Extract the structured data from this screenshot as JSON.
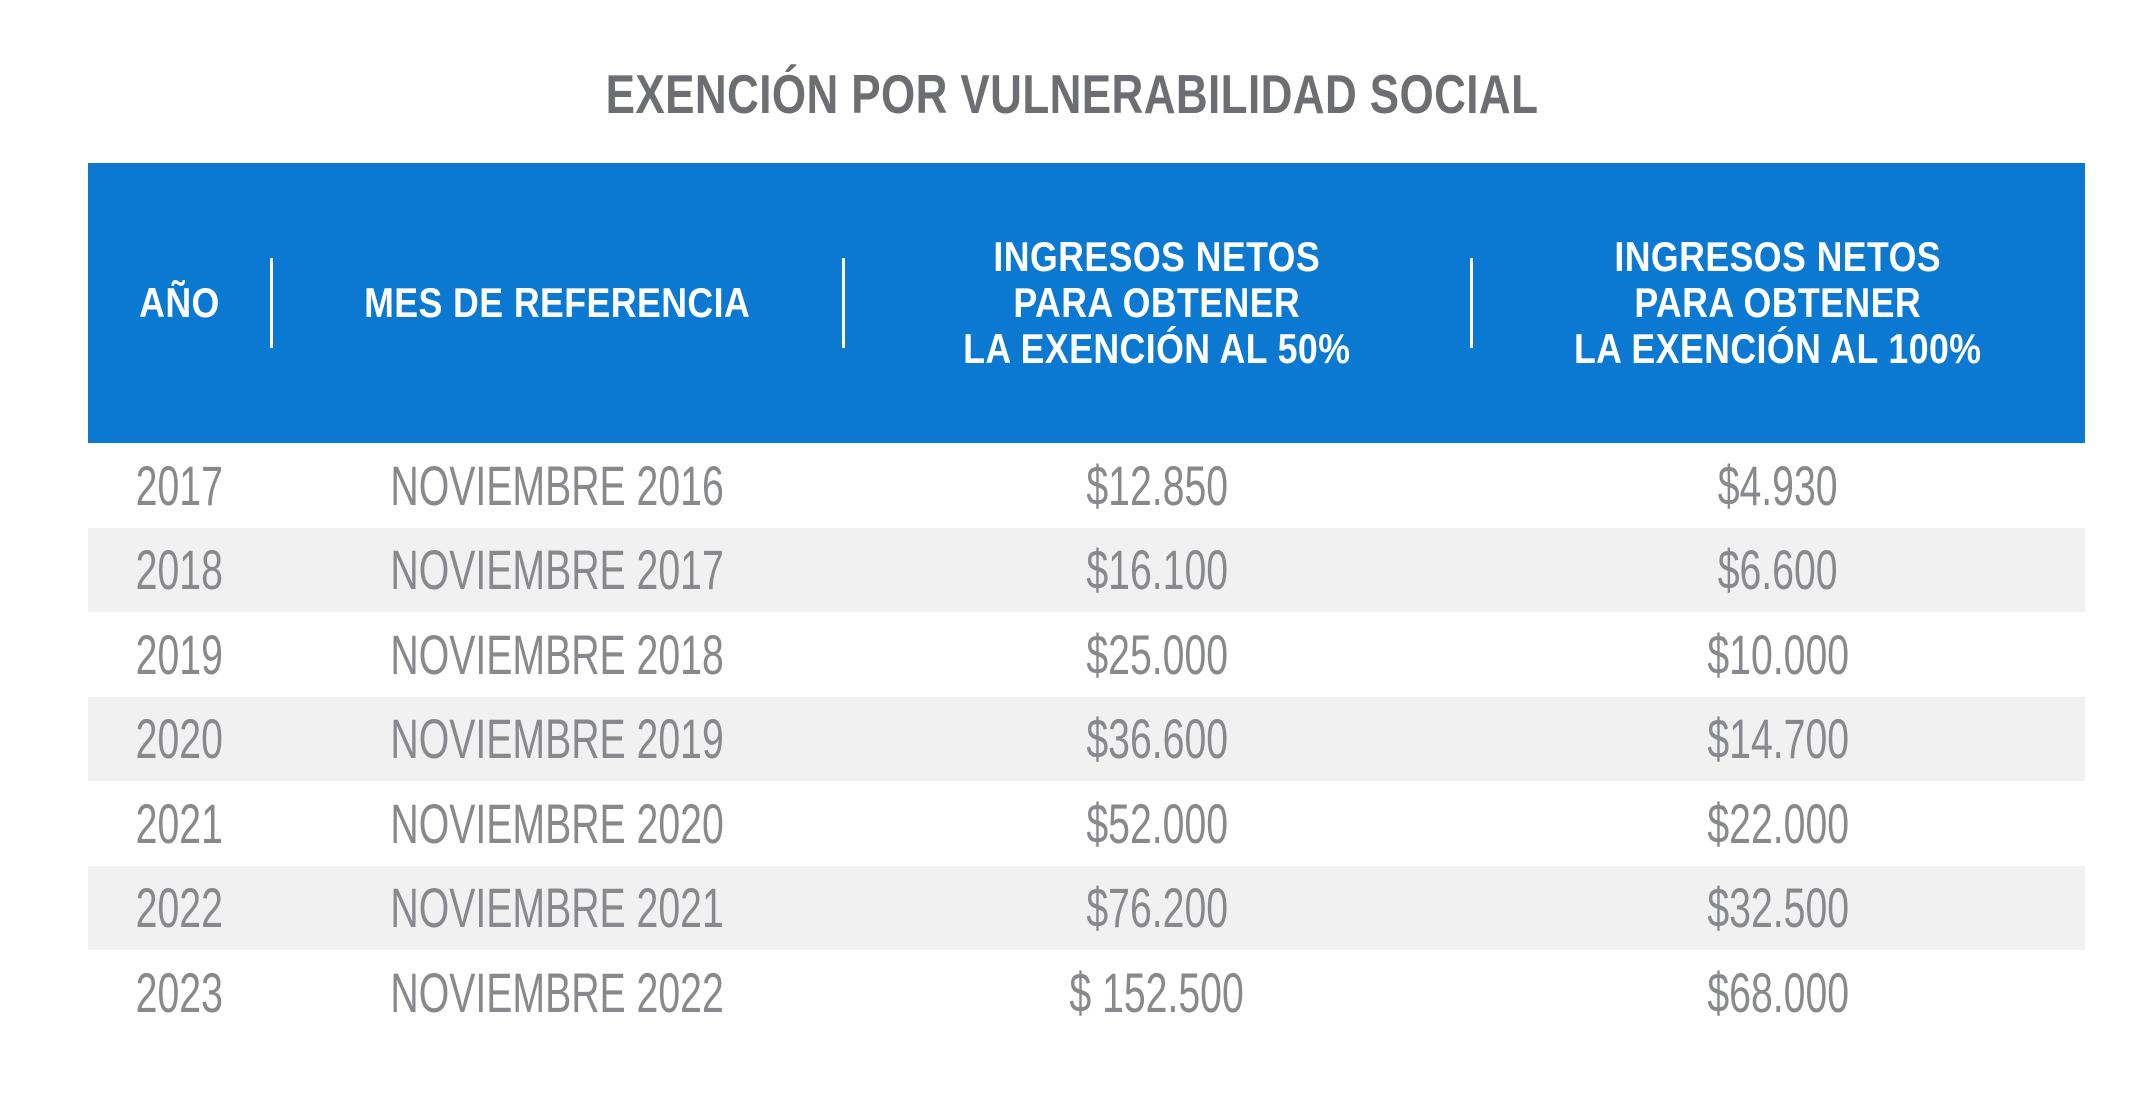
{
  "title": "EXENCIÓN POR VULNERABILIDAD SOCIAL",
  "colors": {
    "header_bg": "#0b79d1",
    "header_text": "#ffffff",
    "alt_row_bg": "#f1f1f2",
    "body_text": "#87898c",
    "title_text": "#6d6e71",
    "page_bg": "#ffffff"
  },
  "table": {
    "headers": [
      {
        "label": "AÑO",
        "lines": [
          "AÑO"
        ]
      },
      {
        "label": "MES DE REFERENCIA",
        "lines": [
          "MES DE REFERENCIA"
        ]
      },
      {
        "label": "INGRESOS NETOS PARA OBTENER LA EXENCIÓN AL 50%",
        "lines": [
          "INGRESOS NETOS",
          "PARA OBTENER",
          "LA EXENCIÓN AL 50%"
        ]
      },
      {
        "label": "INGRESOS NETOS PARA OBTENER LA EXENCIÓN AL 100%",
        "lines": [
          "INGRESOS NETOS",
          "PARA OBTENER",
          "LA EXENCIÓN AL 100%"
        ]
      }
    ],
    "rows": [
      {
        "ano": "2017",
        "mes": "NOVIEMBRE 2016",
        "al50": "$12.850",
        "al100": "$4.930"
      },
      {
        "ano": "2018",
        "mes": "NOVIEMBRE 2017",
        "al50": "$16.100",
        "al100": "$6.600"
      },
      {
        "ano": "2019",
        "mes": "NOVIEMBRE 2018",
        "al50": "$25.000",
        "al100": "$10.000"
      },
      {
        "ano": "2020",
        "mes": "NOVIEMBRE 2019",
        "al50": "$36.600",
        "al100": "$14.700"
      },
      {
        "ano": "2021",
        "mes": "NOVIEMBRE 2020",
        "al50": "$52.000",
        "al100": "$22.000"
      },
      {
        "ano": "2022",
        "mes": "NOVIEMBRE 2021",
        "al50": "$76.200",
        "al100": "$32.500"
      },
      {
        "ano": "2023",
        "mes": "NOVIEMBRE 2022",
        "al50": "$ 152.500",
        "al100": "$68.000"
      }
    ]
  },
  "chart_data": {
    "type": "table",
    "title": "EXENCIÓN POR VULNERABILIDAD SOCIAL",
    "columns": [
      "AÑO",
      "MES DE REFERENCIA",
      "INGRESOS NETOS PARA OBTENER LA EXENCIÓN AL 50%",
      "INGRESOS NETOS PARA OBTENER LA EXENCIÓN AL 100%"
    ],
    "rows": [
      [
        "2017",
        "NOVIEMBRE 2016",
        "$12.850",
        "$4.930"
      ],
      [
        "2018",
        "NOVIEMBRE 2017",
        "$16.100",
        "$6.600"
      ],
      [
        "2019",
        "NOVIEMBRE 2018",
        "$25.000",
        "$10.000"
      ],
      [
        "2020",
        "NOVIEMBRE 2019",
        "$36.600",
        "$14.700"
      ],
      [
        "2021",
        "NOVIEMBRE 2020",
        "$52.000",
        "$22.000"
      ],
      [
        "2022",
        "NOVIEMBRE 2021",
        "$76.200",
        "$32.500"
      ],
      [
        "2023",
        "NOVIEMBRE 2022",
        "$ 152.500",
        "$68.000"
      ]
    ],
    "layout_hints": {
      "header_bg": "#0b79d1",
      "alternating_rows": true,
      "alt_row_color": "#f1f1f2",
      "column_alignment": "center"
    }
  }
}
